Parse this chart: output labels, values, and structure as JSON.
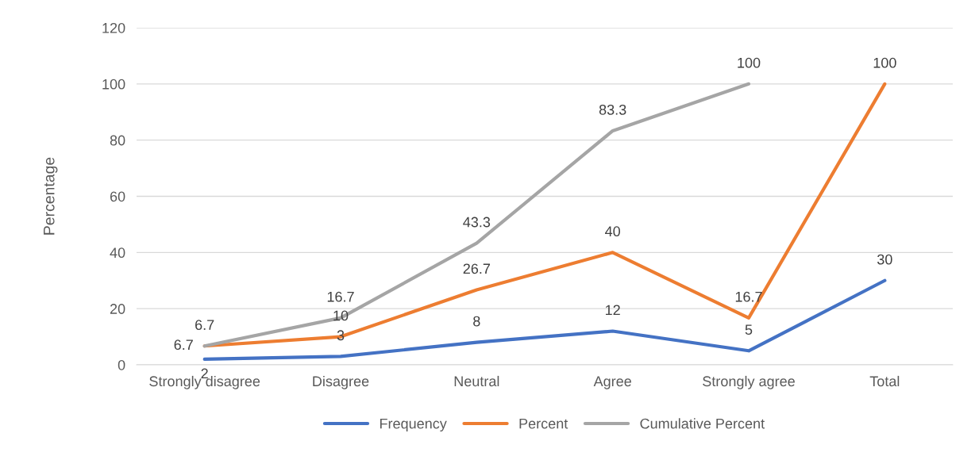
{
  "chart_data": {
    "type": "line",
    "ylabel": "Percentage",
    "categories": [
      "Strongly disagree",
      "Disagree",
      "Neutral",
      "Agree",
      "Strongly agree",
      "Total"
    ],
    "series": [
      {
        "name": "Frequency",
        "color": "#4472c4",
        "values": [
          2,
          3,
          8,
          12,
          5,
          30
        ]
      },
      {
        "name": "Percent",
        "color": "#ed7d31",
        "values": [
          6.7,
          10,
          26.7,
          40,
          16.7,
          100
        ]
      },
      {
        "name": "Cumulative Percent",
        "color": "#a5a5a5",
        "values": [
          6.7,
          16.7,
          43.3,
          83.3,
          100,
          null
        ]
      }
    ],
    "ylim": [
      0,
      120
    ],
    "yticks": [
      0,
      20,
      40,
      60,
      80,
      100,
      120
    ],
    "grid": "y",
    "legend": "bottom",
    "data_labels": true,
    "marker": "none",
    "line_style": "solid"
  }
}
